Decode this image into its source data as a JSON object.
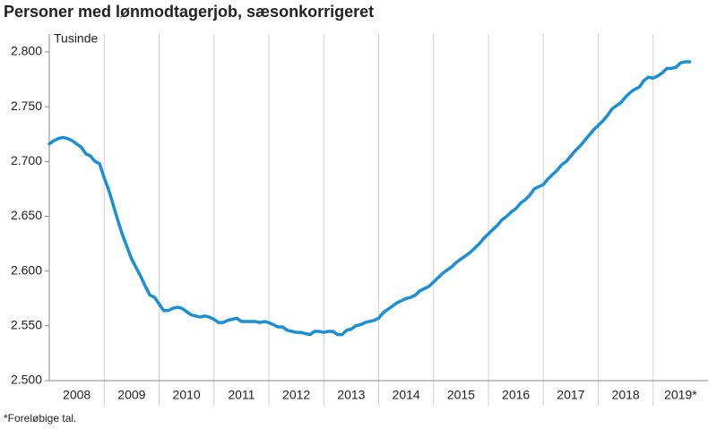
{
  "chart_data": {
    "type": "line",
    "title": "Personer med lønmodtagerjob, sæsonkorrigeret",
    "y_label": "Tusinde",
    "footnote": "*Foreløbige tal.",
    "categories": [
      "2008",
      null,
      null,
      null,
      null,
      null,
      null,
      null,
      null,
      null,
      null,
      null,
      "2009",
      null,
      null,
      null,
      null,
      null,
      null,
      null,
      null,
      null,
      null,
      null,
      "2010",
      null,
      null,
      null,
      null,
      null,
      null,
      null,
      null,
      null,
      null,
      null,
      "2011",
      null,
      null,
      null,
      null,
      null,
      null,
      null,
      null,
      null,
      null,
      null,
      "2012",
      null,
      null,
      null,
      null,
      null,
      null,
      null,
      null,
      null,
      null,
      null,
      "2013",
      null,
      null,
      null,
      null,
      null,
      null,
      null,
      null,
      null,
      null,
      null,
      "2014",
      null,
      null,
      null,
      null,
      null,
      null,
      null,
      null,
      null,
      null,
      null,
      "2015",
      null,
      null,
      null,
      null,
      null,
      null,
      null,
      null,
      null,
      null,
      null,
      "2016",
      null,
      null,
      null,
      null,
      null,
      null,
      null,
      null,
      null,
      null,
      null,
      "2017",
      null,
      null,
      null,
      null,
      null,
      null,
      null,
      null,
      null,
      null,
      null,
      "2018",
      null,
      null,
      null,
      null,
      null,
      null,
      null,
      null,
      null,
      null,
      null,
      "2019*",
      null,
      null,
      null,
      null,
      null,
      null,
      null,
      null
    ],
    "values": [
      2716,
      2719,
      2721,
      2722,
      2721,
      2719,
      2716,
      2713,
      2707,
      2705,
      2700,
      2698,
      2685,
      2674,
      2660,
      2646,
      2633,
      2622,
      2611,
      2603,
      2595,
      2586,
      2578,
      2576,
      2570,
      2564,
      2564,
      2566,
      2567,
      2566,
      2563,
      2560,
      2559,
      2558,
      2559,
      2558,
      2556,
      2553,
      2553,
      2555,
      2556,
      2557,
      2554,
      2554,
      2554,
      2554,
      2553,
      2554,
      2553,
      2551,
      2549,
      2549,
      2546,
      2545,
      2544,
      2544,
      2543,
      2542,
      2545,
      2545,
      2544,
      2545,
      2545,
      2542,
      2542,
      2546,
      2547,
      2550,
      2551,
      2553,
      2554,
      2555,
      2557,
      2562,
      2565,
      2568,
      2571,
      2573,
      2575,
      2576,
      2578,
      2582,
      2584,
      2586,
      2590,
      2594,
      2598,
      2601,
      2604,
      2608,
      2611,
      2614,
      2617,
      2621,
      2625,
      2630,
      2634,
      2638,
      2642,
      2647,
      2650,
      2654,
      2657,
      2662,
      2665,
      2669,
      2675,
      2677,
      2679,
      2684,
      2688,
      2692,
      2697,
      2700,
      2705,
      2710,
      2714,
      2719,
      2724,
      2729,
      2733,
      2737,
      2742,
      2748,
      2751,
      2754,
      2759,
      2763,
      2766,
      2768,
      2774,
      2777,
      2776,
      2778,
      2781,
      2785,
      2785,
      2786,
      2790,
      2791,
      2791
    ],
    "color": "#1a8fd6",
    "ylim": [
      2500,
      2800
    ],
    "yticks": [
      {
        "value": 2500,
        "label": "2.500"
      },
      {
        "value": 2550,
        "label": "2.550"
      },
      {
        "value": 2600,
        "label": "2.600"
      },
      {
        "value": 2650,
        "label": "2.650"
      },
      {
        "value": 2700,
        "label": "2.700"
      },
      {
        "value": 2750,
        "label": "2.750"
      },
      {
        "value": 2800,
        "label": "2.800"
      }
    ],
    "grid": true
  }
}
